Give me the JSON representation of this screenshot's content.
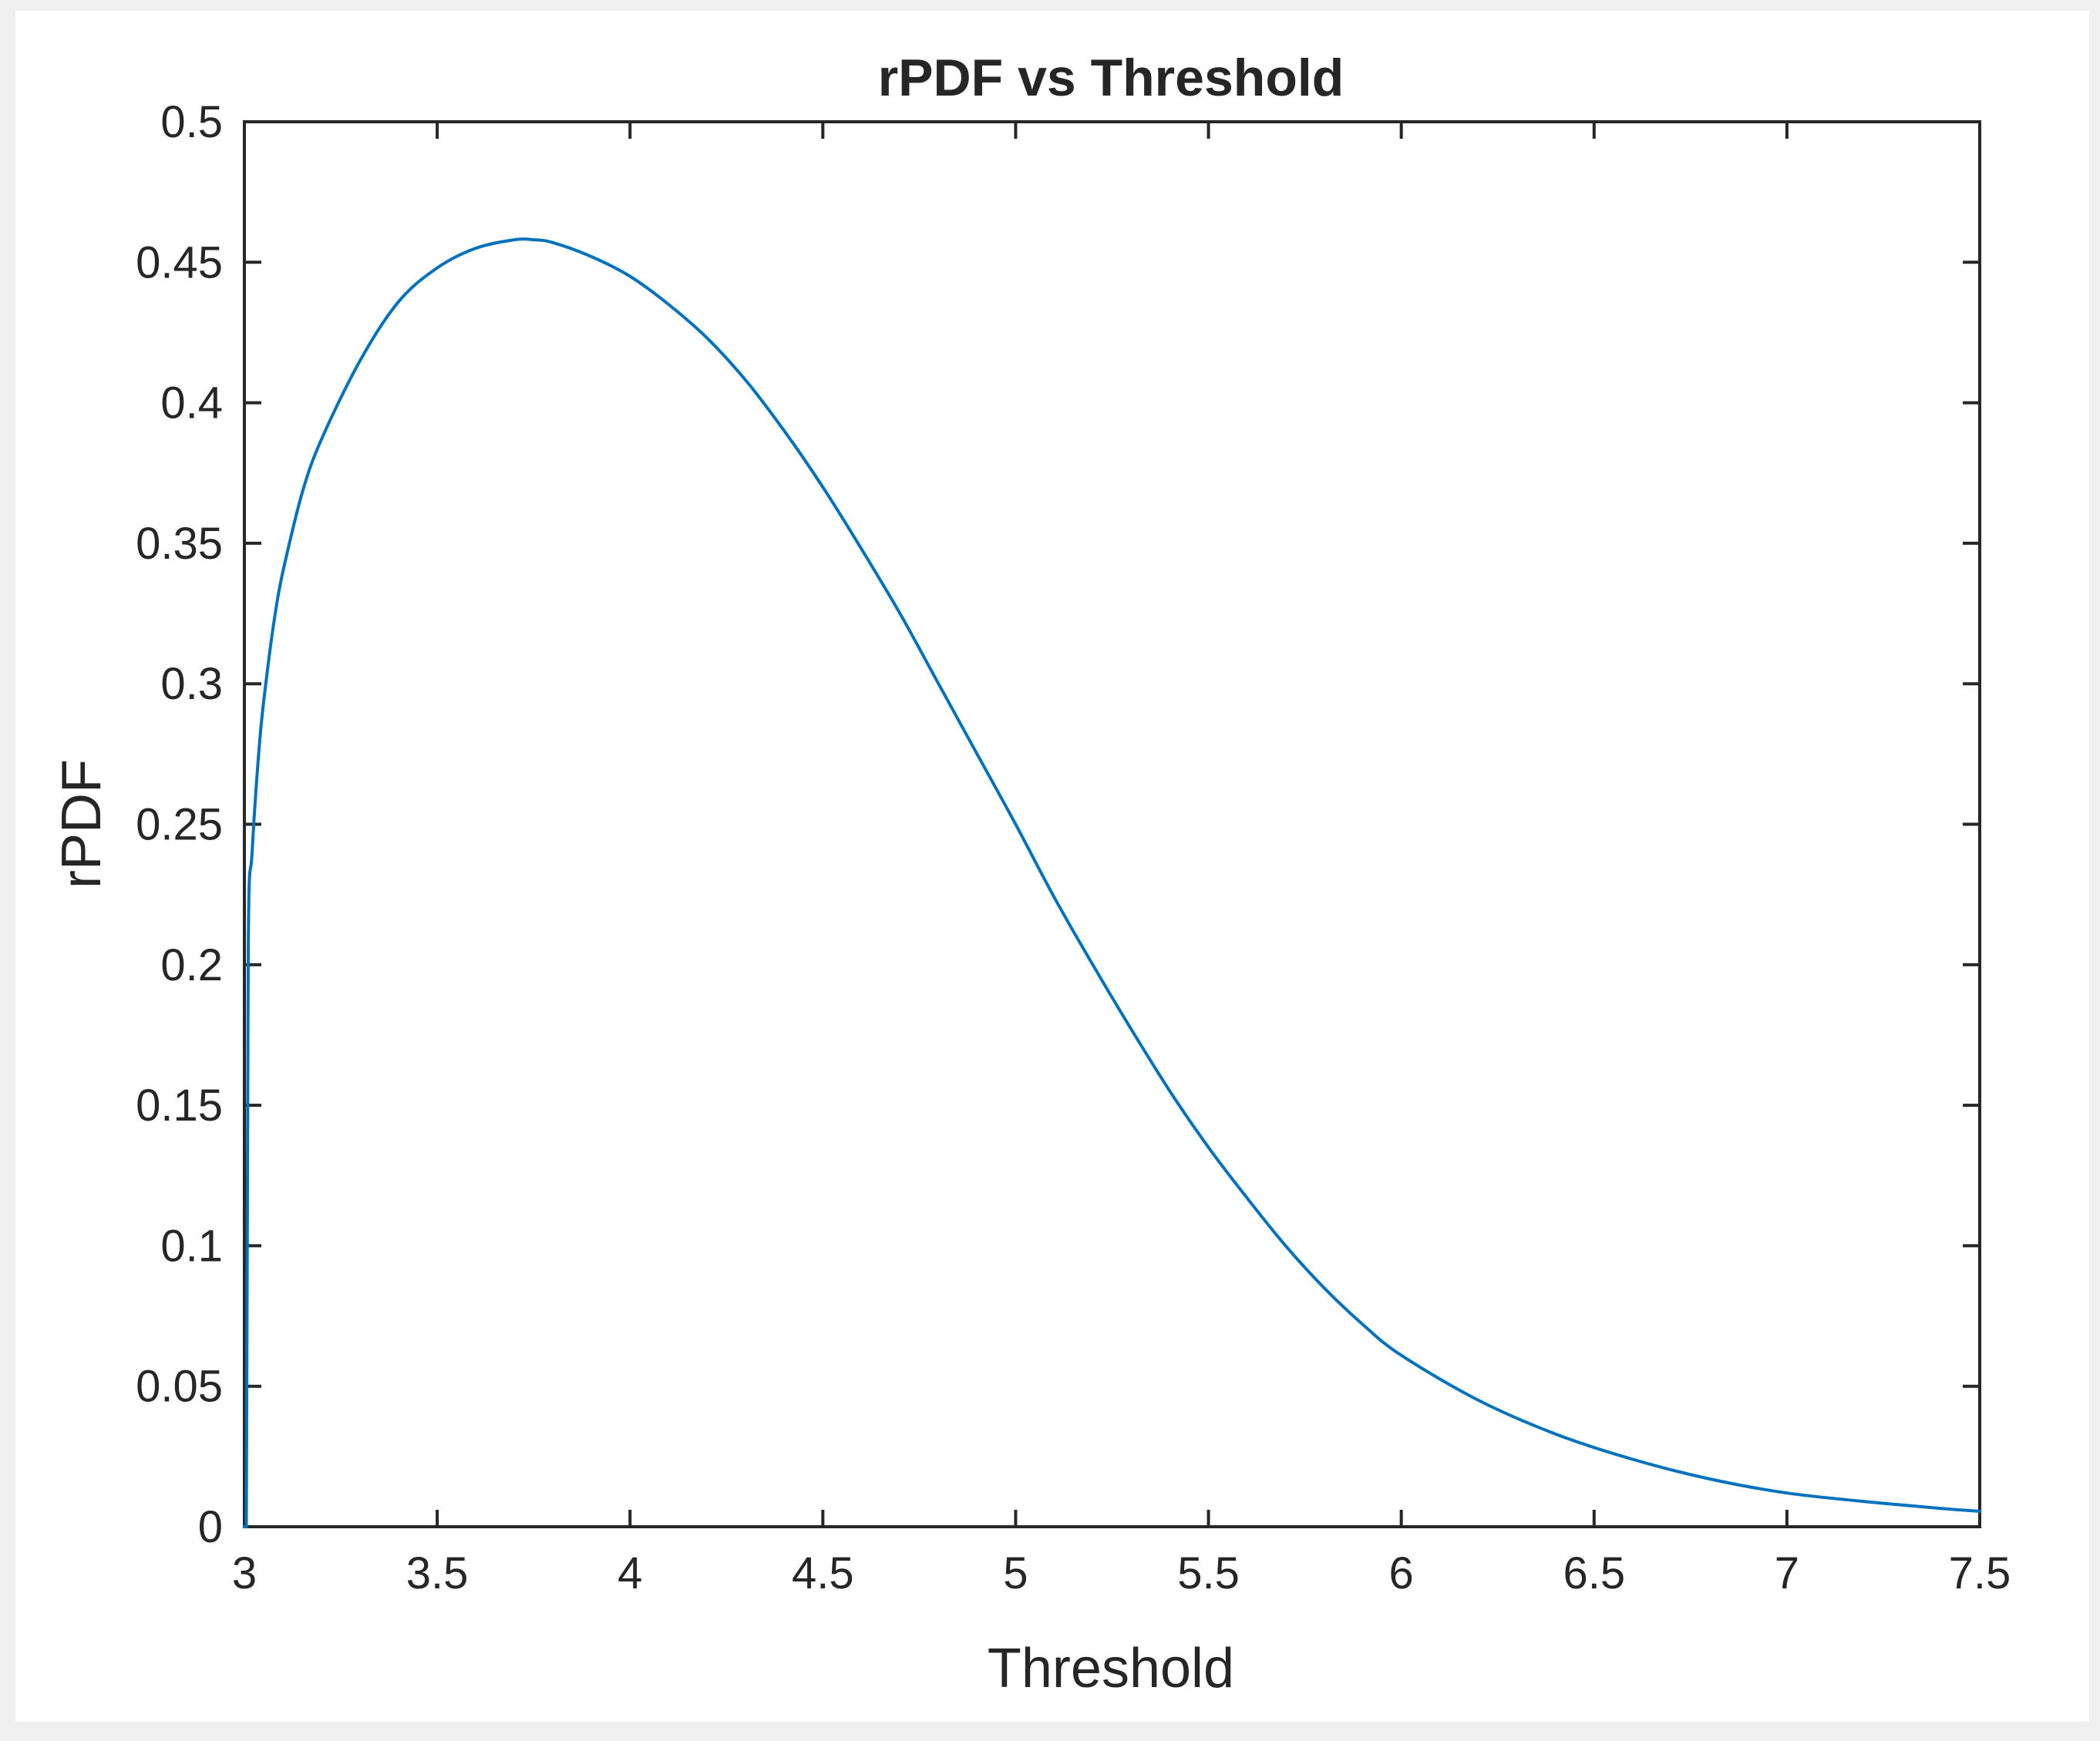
{
  "chart_data": {
    "type": "line",
    "title": "rPDF vs Threshold",
    "xlabel": "Threshold",
    "ylabel": "rPDF",
    "xlim": [
      3,
      7.5
    ],
    "ylim": [
      0,
      0.5
    ],
    "x_ticks": [
      "3",
      "3.5",
      "4",
      "4.5",
      "5",
      "5.5",
      "6",
      "6.5",
      "7",
      "7.5"
    ],
    "y_ticks": [
      "0",
      "0.05",
      "0.1",
      "0.15",
      "0.2",
      "0.25",
      "0.3",
      "0.35",
      "0.4",
      "0.45",
      "0.5"
    ],
    "grid": false,
    "legend": "none",
    "series": [
      {
        "color": "#0072bd",
        "x": [
          3.0,
          3.005,
          3.01,
          3.02,
          3.04,
          3.06,
          3.08,
          3.1,
          3.15,
          3.2,
          3.3,
          3.4,
          3.5,
          3.6,
          3.7,
          3.75,
          3.8,
          3.9,
          4.0,
          4.1,
          4.2,
          4.3,
          4.4,
          4.5,
          4.6,
          4.7,
          4.8,
          4.9,
          5.0,
          5.1,
          5.2,
          5.3,
          5.4,
          5.5,
          5.6,
          5.7,
          5.8,
          5.9,
          6.0,
          6.2,
          6.4,
          6.6,
          6.8,
          7.0,
          7.2,
          7.4,
          7.5
        ],
        "y": [
          0.0,
          0.0,
          0.205,
          0.24,
          0.28,
          0.305,
          0.325,
          0.34,
          0.368,
          0.387,
          0.415,
          0.436,
          0.448,
          0.455,
          0.458,
          0.458,
          0.457,
          0.452,
          0.445,
          0.435,
          0.423,
          0.408,
          0.39,
          0.37,
          0.348,
          0.325,
          0.3,
          0.275,
          0.25,
          0.224,
          0.2,
          0.177,
          0.155,
          0.135,
          0.117,
          0.1,
          0.085,
          0.072,
          0.061,
          0.045,
          0.033,
          0.024,
          0.017,
          0.012,
          0.009,
          0.0065,
          0.0055
        ]
      }
    ]
  }
}
